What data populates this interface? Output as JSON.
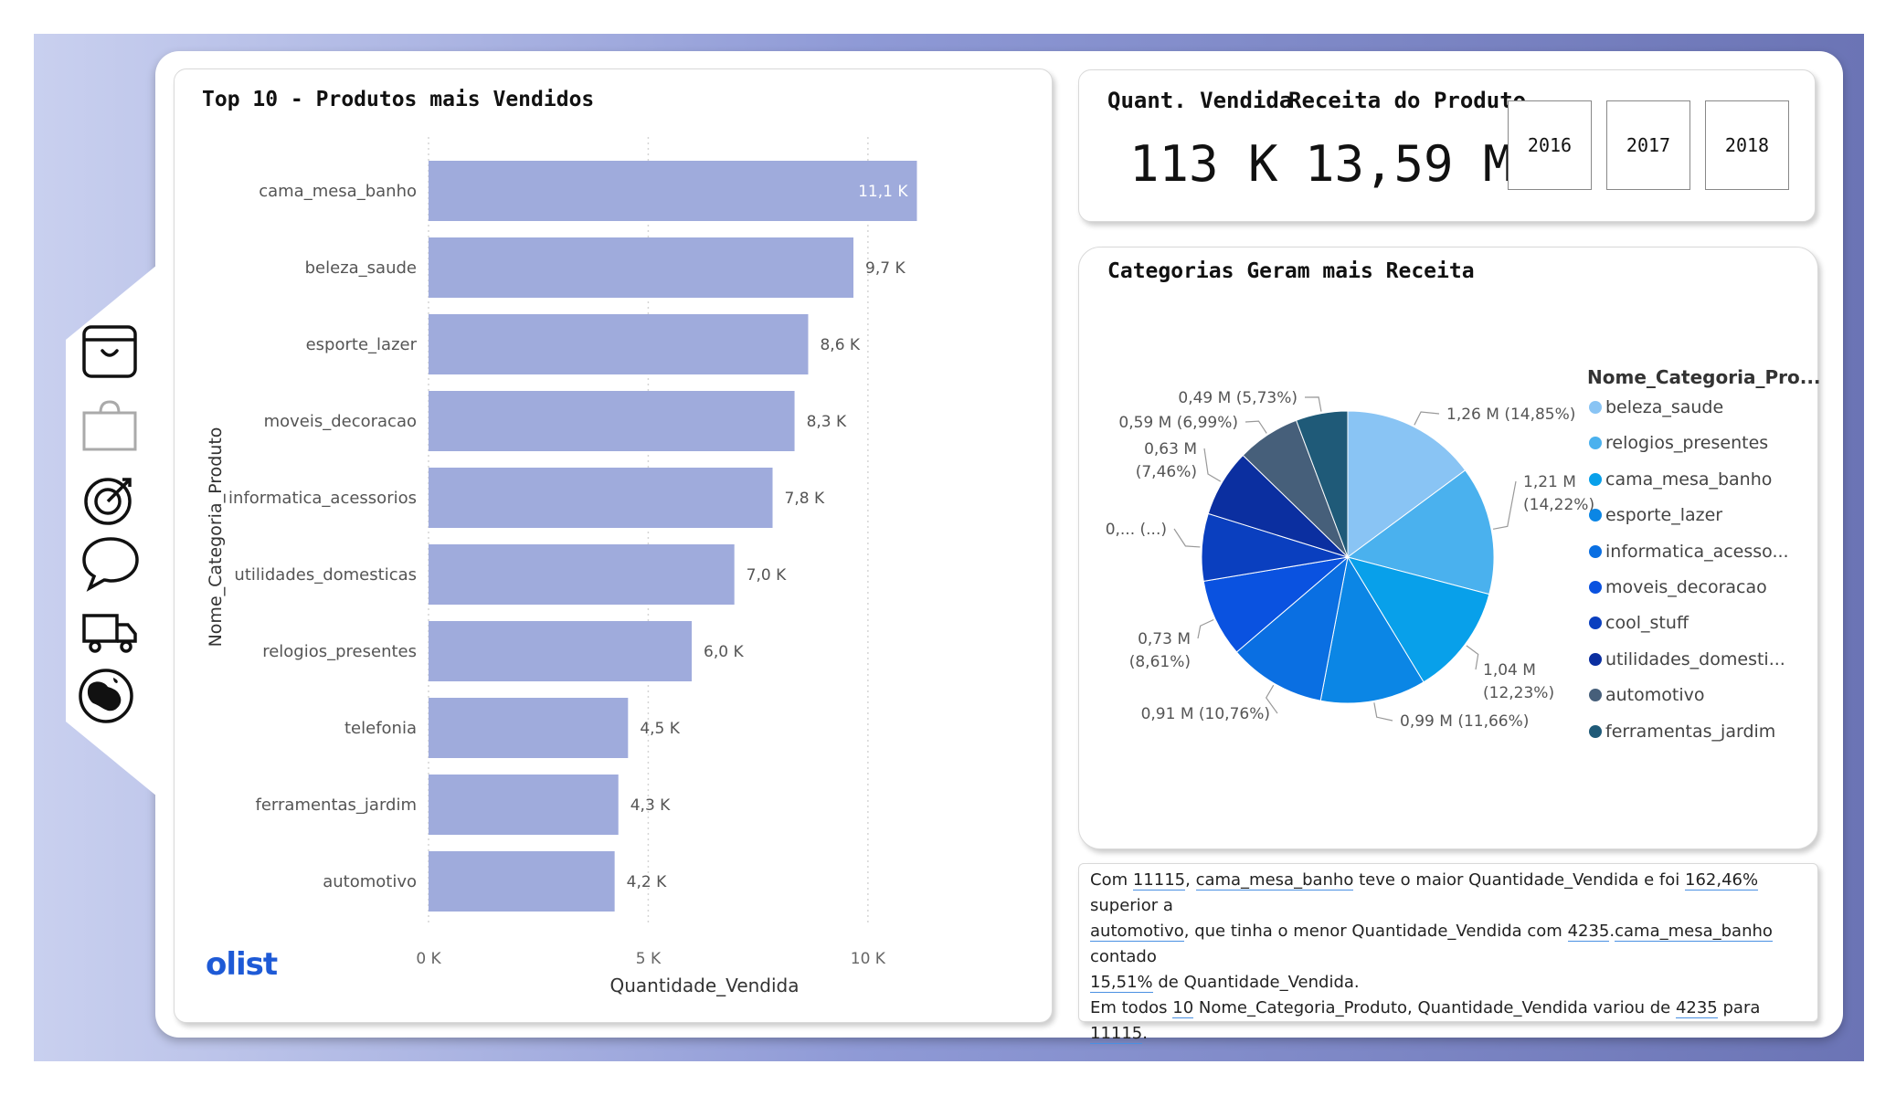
{
  "bar_chart": {
    "title": "Top 10 - Produtos mais Vendidos",
    "xlabel": "Quantidade_Vendida",
    "ylabel": "Nome_Categoria_Produto",
    "bar_color": "#9fabdc"
  },
  "pie_chart": {
    "title": "Categorias Geram mais Receita",
    "legend_title": "Nome_Categoria_Pro...",
    "legend_items": [
      {
        "label": "beleza_saude",
        "color": "#89c4f4"
      },
      {
        "label": "relogios_presentes",
        "color": "#4ab1ee"
      },
      {
        "label": "cama_mesa_banho",
        "color": "#08a0ea"
      },
      {
        "label": "esporte_lazer",
        "color": "#0b86e5"
      },
      {
        "label": "informatica_acesso...",
        "color": "#0a6fe2"
      },
      {
        "label": "moveis_decoracao",
        "color": "#0a52e0"
      },
      {
        "label": "cool_stuff",
        "color": "#0a3fbf"
      },
      {
        "label": "utilidades_domesti...",
        "color": "#0b2fa0"
      },
      {
        "label": "automotivo",
        "color": "#465f7a"
      },
      {
        "label": "ferramentas_jardim",
        "color": "#1f5a78"
      }
    ]
  },
  "kpis": {
    "qty_label": "Quant. Vendida",
    "qty_value": "113 K",
    "rev_label": "Receita do Produto",
    "rev_value": "13,59 M"
  },
  "years": [
    "2016",
    "2017",
    "2018"
  ],
  "narrative": {
    "l1a": "Com ",
    "v1": "11115",
    "l1b": ", ",
    "v2": "cama_mesa_banho",
    "l1c": " teve o maior Quantidade_Vendida e foi ",
    "v3": "162,46%",
    "l1d": " superior a",
    "v4": "automotivo",
    "l2a": ", que tinha o menor Quantidade_Vendida com ",
    "v5": "4235",
    "l2b": ".",
    "v6": "cama_mesa_banho",
    "l2c": " contado",
    "v7": "15,51%",
    "l3a": " de Quantidade_Vendida.",
    "l4a": "Em todos ",
    "v8": "10",
    "l4b": " Nome_Categoria_Produto, Quantidade_Vendida variou de ",
    "v9": "4235",
    "l4c": " para ",
    "v10": "11115",
    "l4d": "."
  },
  "logo_text": "olist",
  "chart_data": [
    {
      "type": "bar",
      "orientation": "horizontal",
      "title": "Top 10 - Produtos mais Vendidos",
      "xlabel": "Quantidade_Vendida",
      "ylabel": "Nome_Categoria_Produto",
      "categories": [
        "cama_mesa_banho",
        "beleza_saude",
        "esporte_lazer",
        "moveis_decoracao",
        "informatica_acessorios",
        "utilidades_domesticas",
        "relogios_presentes",
        "telefonia",
        "ferramentas_jardim",
        "automotivo"
      ],
      "values": [
        11115,
        9670,
        8640,
        8330,
        7830,
        6960,
        5990,
        4540,
        4320,
        4235
      ],
      "data_labels": [
        "11,1 K",
        "9,7 K",
        "8,6 K",
        "8,3 K",
        "7,8 K",
        "7,0 K",
        "6,0 K",
        "4,5 K",
        "4,3 K",
        "4,2 K"
      ],
      "xlim": [
        0,
        11500
      ],
      "xticks": [
        0,
        5000,
        10000
      ],
      "xtick_labels": [
        "0 K",
        "5 K",
        "10 K"
      ],
      "grid": true
    },
    {
      "type": "pie",
      "title": "Categorias Geram mais Receita",
      "categories": [
        "beleza_saude",
        "relogios_presentes",
        "cama_mesa_banho",
        "esporte_lazer",
        "informatica_acesso...",
        "moveis_decoracao",
        "cool_stuff",
        "utilidades_domesti...",
        "automotivo",
        "ferramentas_jardim"
      ],
      "values": [
        14.85,
        14.22,
        12.23,
        11.66,
        10.76,
        8.61,
        7.45,
        7.46,
        6.99,
        5.73
      ],
      "data_labels": [
        "1,26 M (14,85%)",
        "1,21 M (14,22%)",
        "1,04 M (12,23%)",
        "0,99 M (11,66%)",
        "0,91 M (10,76%)",
        "0,73 M (8,61%)",
        "0,... (...)",
        "0,63 M (7,46%)",
        "0,59 M (6,99%)",
        "0,49 M (5,73%)"
      ],
      "legend_position": "right"
    }
  ]
}
